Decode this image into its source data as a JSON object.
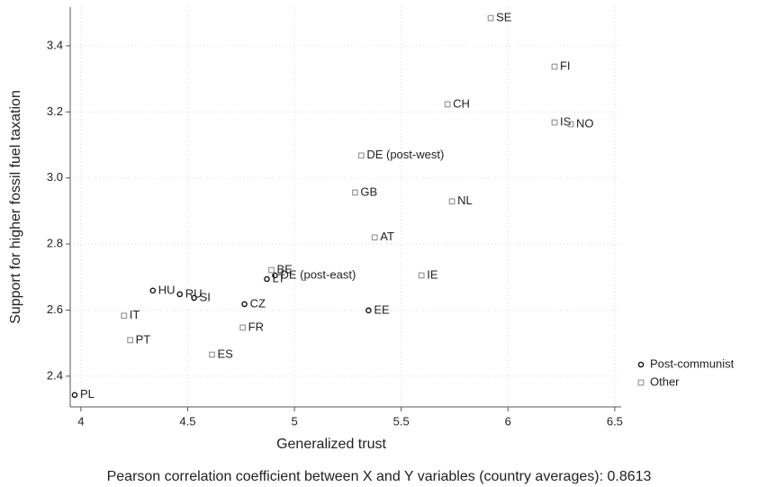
{
  "chart_data": {
    "type": "scatter",
    "x_label": "Generalized trust",
    "y_label": "Support for higher fossil fuel taxation",
    "note": "Pearson correlation coefficient between X and Y variables (country averages): 0.8613",
    "xlim": [
      3.95,
      6.53
    ],
    "ylim": [
      2.307,
      3.517
    ],
    "xticks": [
      4,
      4.5,
      5,
      5.5,
      6,
      6.5
    ],
    "yticks": [
      {
        "value": 2.4,
        "label": "2.4"
      },
      {
        "value": 2.6,
        "label": "2.6"
      },
      {
        "value": 2.8,
        "label": "2.8"
      },
      {
        "value": 3.0,
        "label": "3.0"
      },
      {
        "value": 3.2,
        "label": "3.2"
      },
      {
        "value": 3.4,
        "label": "3.4"
      }
    ],
    "grid": true,
    "legend": "right",
    "series": [
      {
        "name": "Post-communist",
        "marker": "circle",
        "color": "#111111",
        "labels": [
          "DE (post-east)",
          "LT",
          "HU",
          "RU",
          "SI",
          "CZ",
          "EE",
          "PL"
        ],
        "x": [
          4.909,
          4.871,
          4.337,
          4.463,
          4.53,
          4.766,
          5.347,
          3.971
        ],
        "values": [
          2.705,
          2.694,
          2.659,
          2.648,
          2.637,
          2.618,
          2.599,
          2.343
        ]
      },
      {
        "name": "Other",
        "marker": "square",
        "color": "#999999",
        "labels": [
          "SE",
          "FI",
          "CH",
          "IS",
          "NO",
          "DE (post-west)",
          "GB",
          "NL",
          "AT",
          "BE",
          "IE",
          "IT",
          "FR",
          "PT",
          "ES"
        ],
        "x": [
          5.919,
          6.218,
          5.717,
          6.218,
          6.294,
          5.313,
          5.284,
          5.738,
          5.376,
          4.892,
          5.595,
          4.202,
          4.758,
          4.231,
          4.614
        ],
        "values": [
          3.484,
          3.337,
          3.223,
          3.168,
          3.163,
          3.068,
          2.956,
          2.929,
          2.82,
          2.721,
          2.705,
          2.583,
          2.547,
          2.509,
          2.465
        ]
      }
    ]
  }
}
